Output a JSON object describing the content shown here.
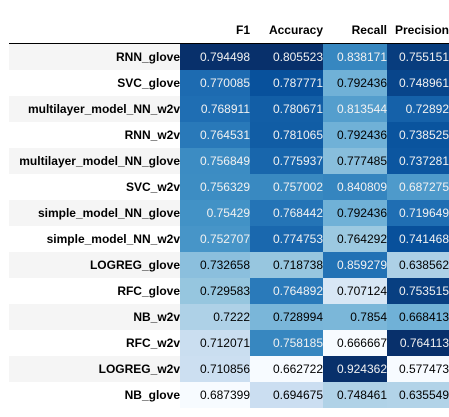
{
  "table": {
    "columns": [
      "F1",
      "Accuracy",
      "Recall",
      "Precision"
    ],
    "rows": [
      {
        "label": "RNN_glove",
        "values": [
          "0.794498",
          "0.805523",
          "0.838171",
          "0.755151"
        ]
      },
      {
        "label": "SVC_glove",
        "values": [
          "0.770085",
          "0.787771",
          "0.792436",
          "0.748961"
        ]
      },
      {
        "label": "multilayer_model_NN_w2v",
        "values": [
          "0.768911",
          "0.780671",
          "0.813544",
          "0.72892"
        ]
      },
      {
        "label": "RNN_w2v",
        "values": [
          "0.764531",
          "0.781065",
          "0.792436",
          "0.738525"
        ]
      },
      {
        "label": "multilayer_model_NN_glove",
        "values": [
          "0.756849",
          "0.775937",
          "0.777485",
          "0.737281"
        ]
      },
      {
        "label": "SVC_w2v",
        "values": [
          "0.756329",
          "0.757002",
          "0.840809",
          "0.687275"
        ]
      },
      {
        "label": "simple_model_NN_glove",
        "values": [
          "0.75429",
          "0.768442",
          "0.792436",
          "0.719649"
        ]
      },
      {
        "label": "simple_model_NN_w2v",
        "values": [
          "0.752707",
          "0.774753",
          "0.764292",
          "0.741468"
        ]
      },
      {
        "label": "LOGREG_glove",
        "values": [
          "0.732658",
          "0.718738",
          "0.859279",
          "0.638562"
        ]
      },
      {
        "label": "RFC_glove",
        "values": [
          "0.729583",
          "0.764892",
          "0.707124",
          "0.753515"
        ]
      },
      {
        "label": "NB_w2v",
        "values": [
          "0.7222",
          "0.728994",
          "0.7854",
          "0.668413"
        ]
      },
      {
        "label": "RFC_w2v",
        "values": [
          "0.712071",
          "0.758185",
          "0.666667",
          "0.764113"
        ]
      },
      {
        "label": "LOGREG_w2v",
        "values": [
          "0.710856",
          "0.662722",
          "0.924362",
          "0.577473"
        ]
      },
      {
        "label": "NB_glove",
        "values": [
          "0.687399",
          "0.694675",
          "0.748461",
          "0.635549"
        ]
      }
    ]
  },
  "colors": {
    "scale_low": "#f7fbff",
    "scale_high": "#08306b",
    "row_stripe": "#f5f5f5",
    "header_border": "#000000"
  }
}
